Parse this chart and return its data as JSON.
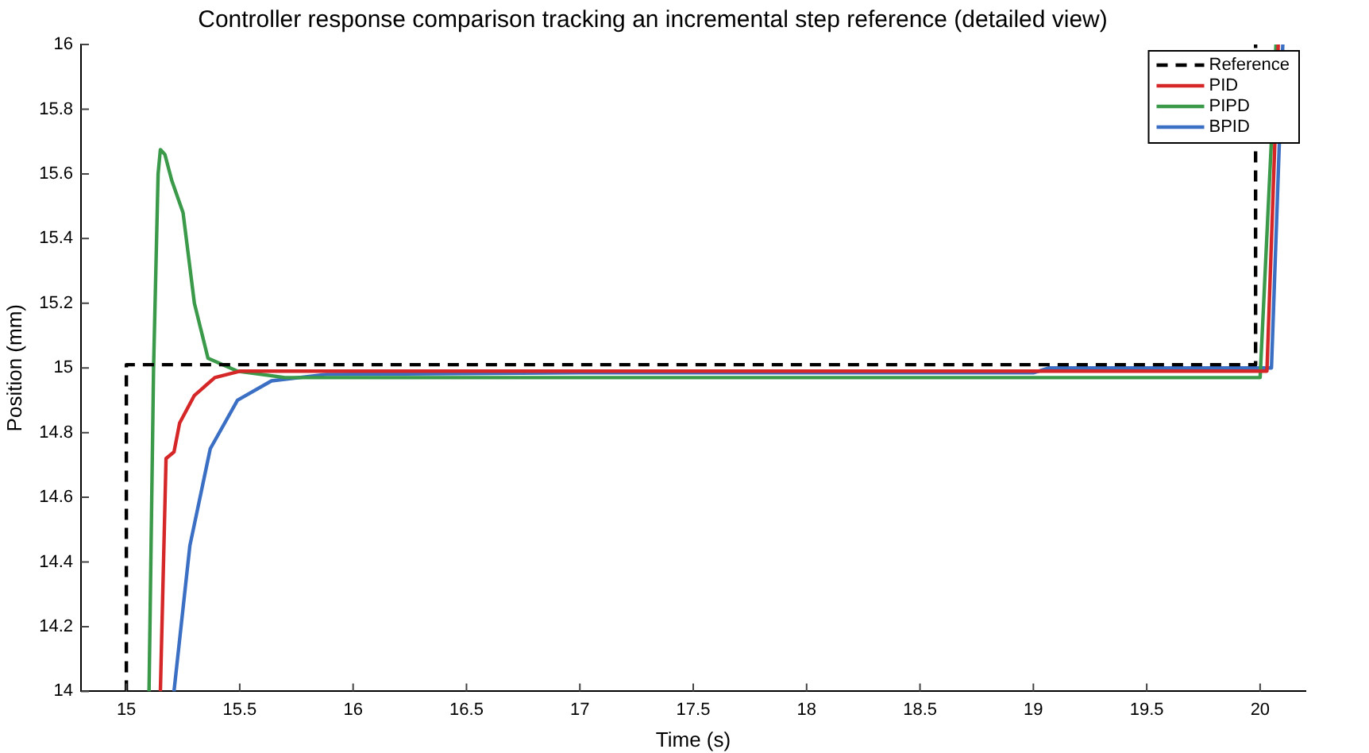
{
  "chart_data": {
    "type": "line",
    "title": "Controller response comparison tracking an incremental step reference (detailed view)",
    "xlabel": "Time (s)",
    "ylabel": "Position (mm)",
    "xlim": [
      14.8,
      20.2
    ],
    "xticks": [
      15,
      15.5,
      16,
      16.5,
      17,
      17.5,
      18,
      18.5,
      19,
      19.5,
      20
    ],
    "ylim": [
      14,
      16
    ],
    "yticks": [
      14,
      14.2,
      14.4,
      14.6,
      14.8,
      15,
      15.2,
      15.4,
      15.6,
      15.8,
      16
    ],
    "grid": false,
    "legend": "top right",
    "marker": "none",
    "series": [
      {
        "name": "Reference",
        "color": "#000000",
        "line_style": "dashed",
        "x": [
          15,
          15,
          19.98,
          19.98
        ],
        "values": [
          14,
          15.01,
          15.01,
          16
        ]
      },
      {
        "name": "PID",
        "color": "#d62728",
        "line_style": "solid",
        "x": [
          15.15,
          15.175,
          15.21,
          15.235,
          15.3,
          15.39,
          15.5,
          16,
          17,
          18,
          19,
          20.03,
          20.08
        ],
        "values": [
          14,
          14.72,
          14.74,
          14.83,
          14.915,
          14.97,
          14.99,
          14.99,
          14.99,
          14.99,
          14.99,
          14.99,
          16
        ]
      },
      {
        "name": "PIPD",
        "color": "#3a9a4a",
        "line_style": "solid",
        "x": [
          15.1,
          15.12,
          15.14,
          15.15,
          15.17,
          15.2,
          15.25,
          15.3,
          15.36,
          15.49,
          15.7,
          17,
          19,
          20,
          20.07
        ],
        "values": [
          14,
          15,
          15.6,
          15.675,
          15.66,
          15.58,
          15.48,
          15.2,
          15.03,
          14.99,
          14.97,
          14.97,
          14.97,
          14.97,
          16
        ]
      },
      {
        "name": "BPID",
        "color": "#3a6fc4",
        "line_style": "solid",
        "x": [
          15.21,
          15.28,
          15.37,
          15.49,
          15.64,
          15.88,
          17,
          19,
          19.07,
          20.05,
          20.1
        ],
        "values": [
          14,
          14.45,
          14.75,
          14.9,
          14.96,
          14.98,
          14.985,
          14.985,
          15,
          15,
          16
        ]
      }
    ]
  }
}
